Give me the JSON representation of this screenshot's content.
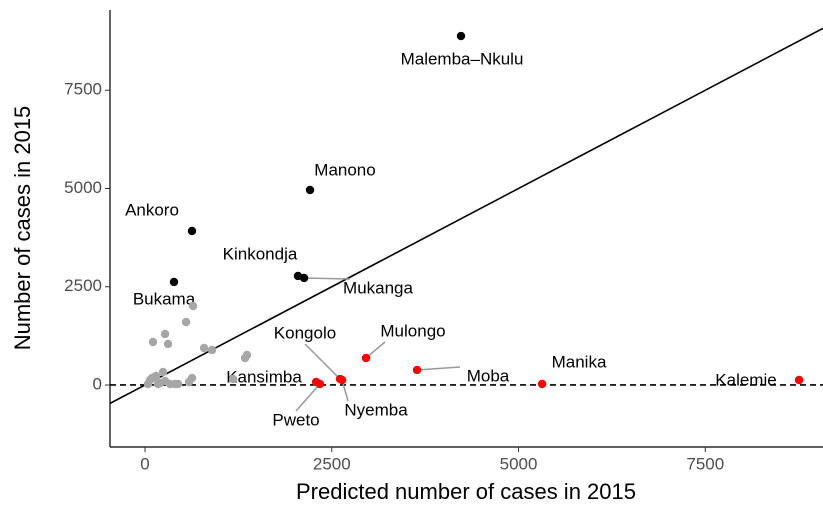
{
  "chart_data": {
    "type": "scatter",
    "x_label": "Predicted number of cases in 2015",
    "y_label": "Number of cases in 2015",
    "xlim": [
      -469,
      9076
    ],
    "ylim": [
      -1578,
      9542
    ],
    "xticks": [
      0,
      2500,
      5000,
      7500
    ],
    "yticks": [
      0,
      2500,
      5000,
      7500
    ],
    "reference_lines": [
      {
        "slope": 1,
        "intercept": 0,
        "dashed": false
      },
      {
        "slope": 0,
        "intercept": 0,
        "dashed": true
      }
    ],
    "series": [
      {
        "color": "#000000",
        "x": [
          4230,
          2209,
          629,
          2048,
          2129,
          388
        ],
        "values": [
          8880,
          4962,
          3919,
          2774,
          2723,
          2621
        ],
        "labels": [
          "Malemba–Nkulu",
          "Manono",
          "Ankoro",
          "Kinkondja",
          "Mukanga",
          "Bukama"
        ]
      },
      {
        "color": "#ff0000",
        "x": [
          8755,
          5315,
          3641,
          2958,
          2637,
          2610,
          2290,
          2340
        ],
        "values": [
          127,
          25,
          382,
          687,
          127,
          153,
          76,
          25
        ],
        "labels": [
          "Kalemie",
          "Manika",
          "Moba",
          "Mulongo",
          "Nyemba",
          "Kongolo",
          "Kansimba",
          "Pweto"
        ]
      },
      {
        "color": "#a6a6a6",
        "x": [
          107,
          268,
          308,
          549,
          643,
          790,
          897,
          1339,
          1365,
          1178,
          67,
          40,
          94,
          147,
          201,
          268,
          335,
          402,
          442,
          589,
          629,
          241,
          174
        ],
        "values": [
          1094,
          1298,
          1043,
          1603,
          2010,
          941,
          891,
          687,
          763,
          153,
          127,
          25,
          178,
          229,
          51,
          102,
          25,
          25,
          25,
          76,
          178,
          331,
          25
        ]
      }
    ]
  }
}
